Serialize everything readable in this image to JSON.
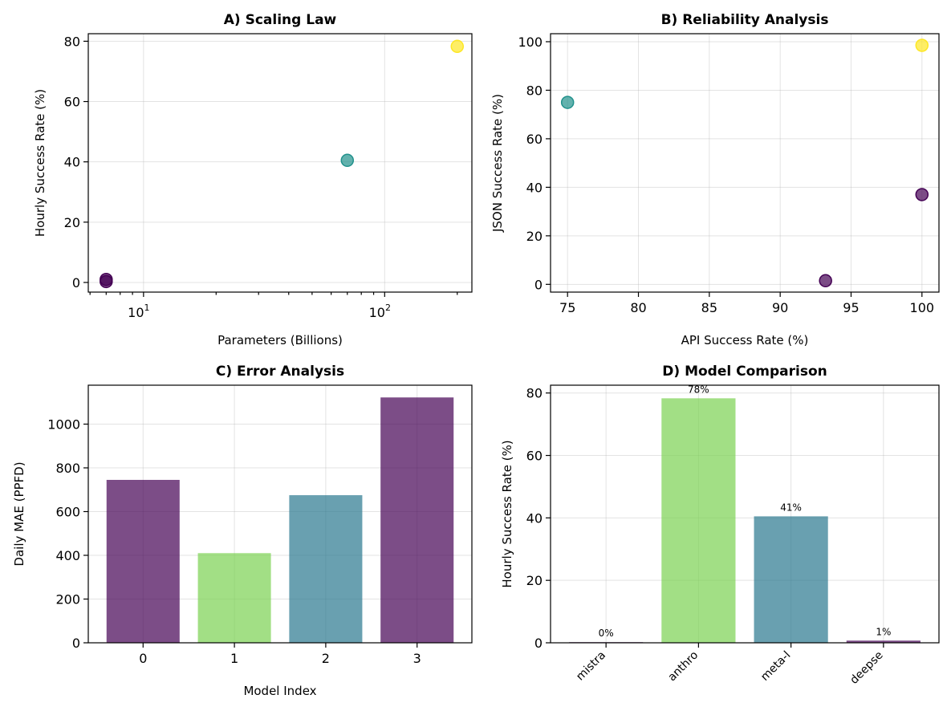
{
  "chart_data": [
    {
      "type": "scatter",
      "title": "A) Scaling Law",
      "xlabel": "Parameters (Billions)",
      "ylabel": "Hourly Success Rate (%)",
      "xscale": "log",
      "xlim": [
        5.9,
        230
      ],
      "ylim": [
        -3.2,
        82.5
      ],
      "xticks": [
        10,
        100
      ],
      "xtick_labels": [
        {
          "base": "10",
          "exp": "1"
        },
        {
          "base": "10",
          "exp": "2"
        }
      ],
      "yticks": [
        0,
        20,
        40,
        60,
        80
      ],
      "ytick_labels": [
        "0",
        "20",
        "40",
        "60",
        "80"
      ],
      "grid": true,
      "points": [
        {
          "x": 7,
          "y": 0.3,
          "color": "#440154"
        },
        {
          "x": 7,
          "y": 1.0,
          "color": "#440154"
        },
        {
          "x": 70,
          "y": 40.5,
          "color": "#21918c"
        },
        {
          "x": 200,
          "y": 78.3,
          "color": "#fde725"
        }
      ]
    },
    {
      "type": "scatter",
      "title": "B) Reliability Analysis",
      "xlabel": "API Success Rate (%)",
      "ylabel": "JSON Success Rate (%)",
      "xlim": [
        73.8,
        101.2
      ],
      "ylim": [
        -3.2,
        103.3
      ],
      "xticks": [
        75,
        80,
        85,
        90,
        95,
        100
      ],
      "xtick_labels": [
        "75",
        "80",
        "85",
        "90",
        "95",
        "100"
      ],
      "yticks": [
        0,
        20,
        40,
        60,
        80,
        100
      ],
      "ytick_labels": [
        "0",
        "20",
        "40",
        "60",
        "80",
        "100"
      ],
      "grid": true,
      "points": [
        {
          "x": 75,
          "y": 75,
          "color": "#21918c"
        },
        {
          "x": 93.2,
          "y": 1.5,
          "color": "#440154"
        },
        {
          "x": 100,
          "y": 37,
          "color": "#440154"
        },
        {
          "x": 100,
          "y": 98.5,
          "color": "#fde725"
        }
      ]
    },
    {
      "type": "bar",
      "title": "C) Error Analysis",
      "xlabel": "Model Index",
      "ylabel": "Daily MAE (PPFD)",
      "categories": [
        "0",
        "1",
        "2",
        "3"
      ],
      "values": [
        745,
        410,
        675,
        1122
      ],
      "colors": [
        "#440154",
        "#7ad151",
        "#2a788e",
        "#440154"
      ],
      "ylim": [
        0,
        1178
      ],
      "yticks": [
        0,
        200,
        400,
        600,
        800,
        1000
      ],
      "ytick_labels": [
        "0",
        "200",
        "400",
        "600",
        "800",
        "1000"
      ],
      "grid": true
    },
    {
      "type": "bar",
      "title": "D) Model Comparison",
      "xlabel": "",
      "ylabel": "Hourly Success Rate (%)",
      "categories": [
        "mistra",
        "anthro",
        "meta-l",
        "deepse"
      ],
      "values": [
        0.2,
        78.3,
        40.5,
        0.7
      ],
      "data_labels": [
        "0%",
        "78%",
        "41%",
        "1%"
      ],
      "colors": [
        "#440154",
        "#7ad151",
        "#2a788e",
        "#440154"
      ],
      "ylim": [
        0,
        82.5
      ],
      "yticks": [
        0,
        20,
        40,
        60,
        80
      ],
      "ytick_labels": [
        "0",
        "20",
        "40",
        "60",
        "80"
      ],
      "grid": true
    }
  ]
}
